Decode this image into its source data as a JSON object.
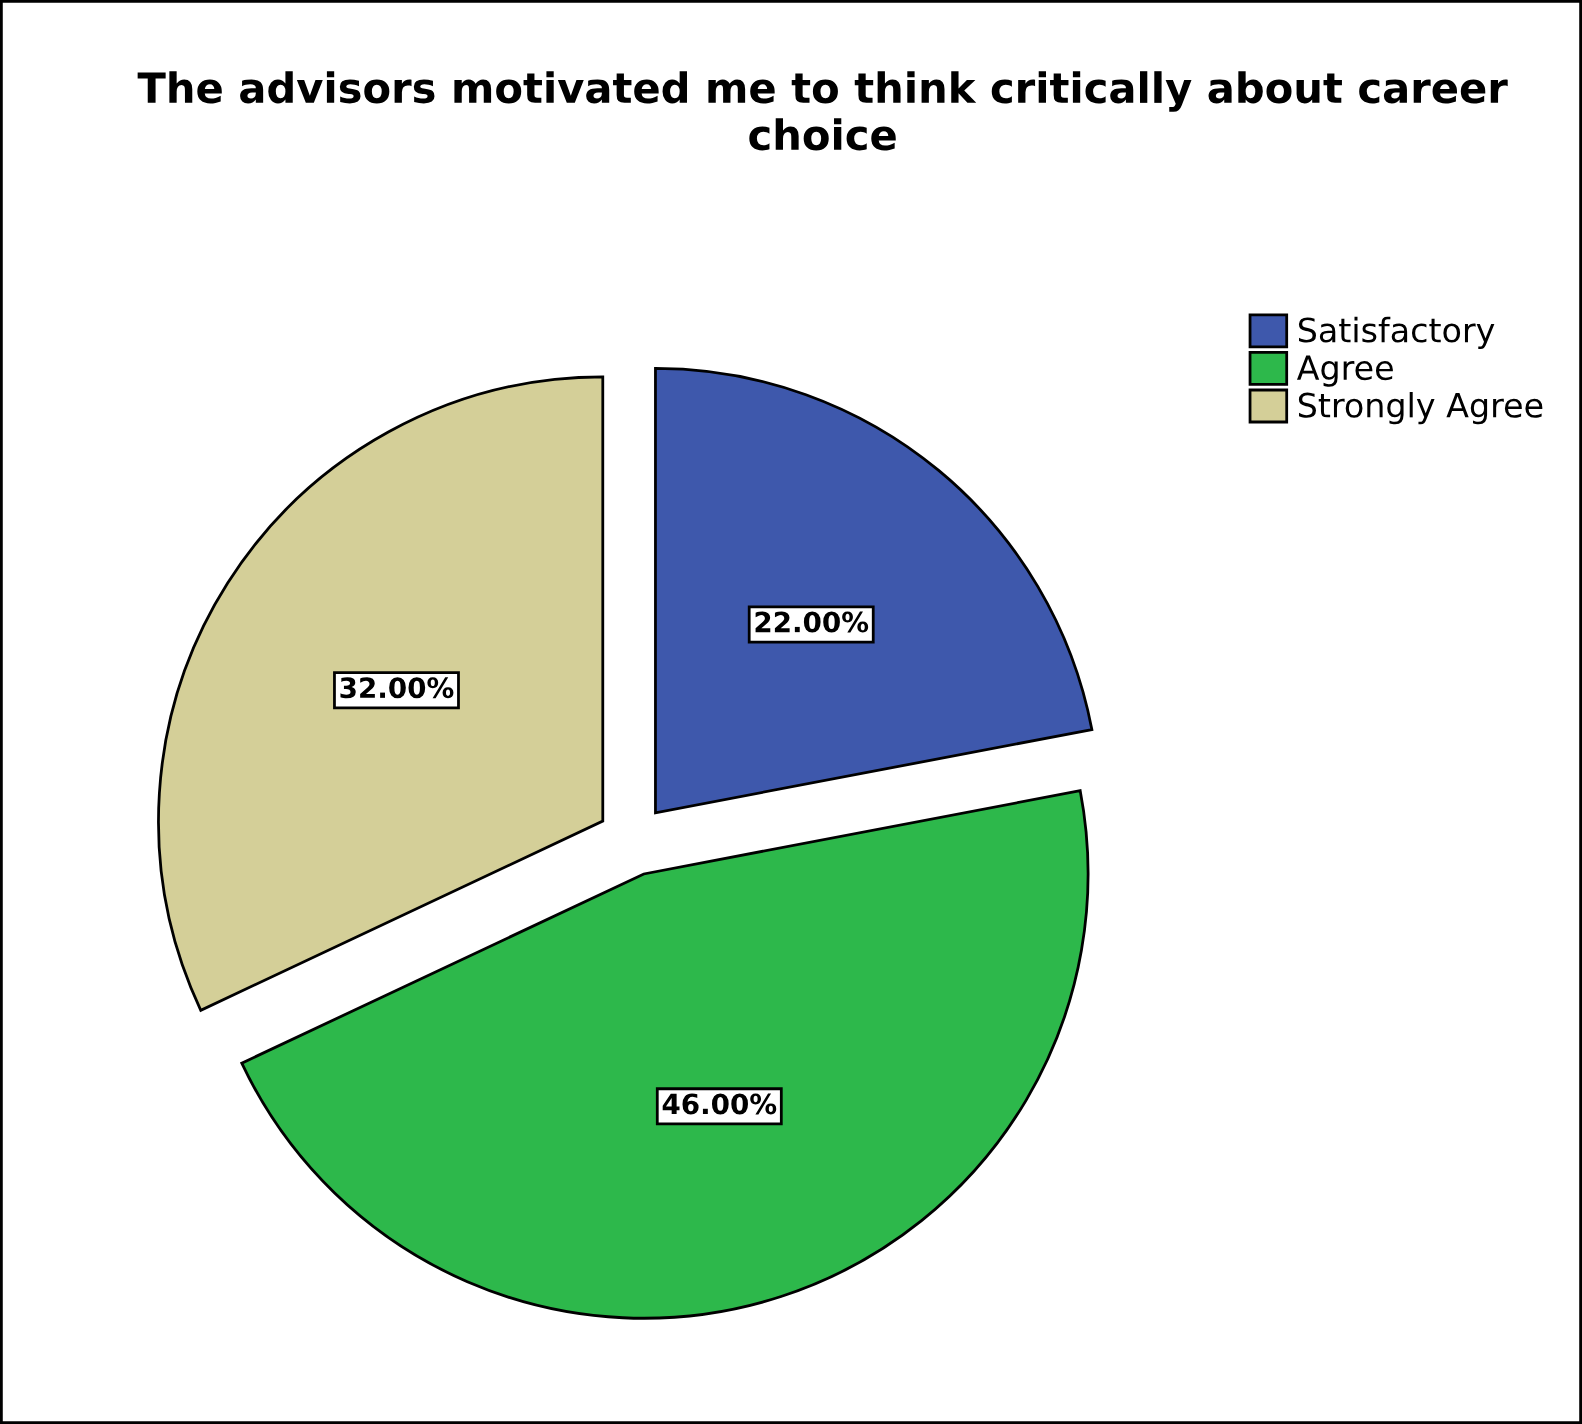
{
  "chart_data": {
    "type": "pie",
    "title": "The advisors motivated me to think critically about career choice",
    "categories": [
      "Satisfactory",
      "Agree",
      "Strongly Agree"
    ],
    "values": [
      22,
      46,
      32
    ],
    "colors": [
      "#3e58ac",
      "#2db84b",
      "#d4cf98"
    ],
    "value_labels": [
      "22.00%",
      "46.00%",
      "32.00%"
    ],
    "legend": "top right"
  }
}
